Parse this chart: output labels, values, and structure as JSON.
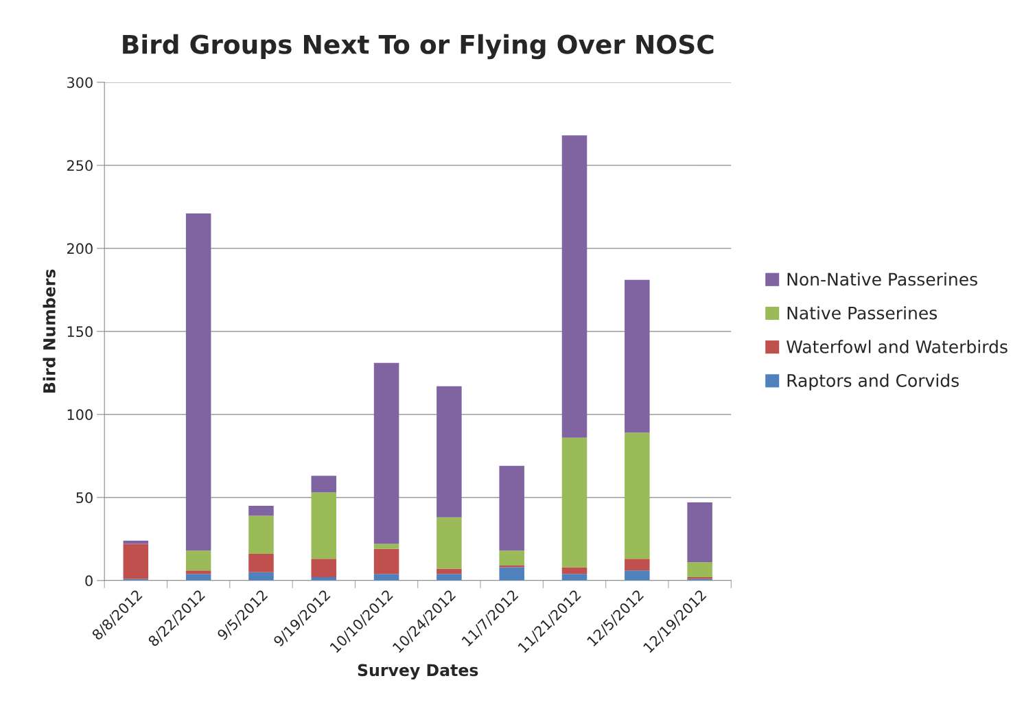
{
  "chart_data": {
    "type": "bar",
    "stacked": true,
    "title": "Bird Groups Next To or Flying Over NOSC",
    "xlabel": "Survey Dates",
    "ylabel": "Bird Numbers",
    "categories": [
      "8/8/2012",
      "8/22/2012",
      "9/5/2012",
      "9/19/2012",
      "10/10/2012",
      "10/24/2012",
      "11/7/2012",
      "11/21/2012",
      "12/5/2012",
      "12/19/2012"
    ],
    "series": [
      {
        "name": "Raptors and Corvids",
        "color": "#4f81bd",
        "values": [
          1,
          4,
          5,
          2,
          4,
          4,
          8,
          4,
          6,
          1
        ]
      },
      {
        "name": "Waterfowl and Waterbirds",
        "color": "#c0504d",
        "values": [
          21,
          2,
          11,
          11,
          15,
          3,
          1,
          4,
          7,
          1
        ]
      },
      {
        "name": "Native Passerines",
        "color": "#9bbb59",
        "values": [
          0,
          12,
          23,
          40,
          3,
          31,
          9,
          78,
          76,
          9
        ]
      },
      {
        "name": "Non-Native Passerines",
        "color": "#8064a2",
        "values": [
          2,
          203,
          6,
          10,
          109,
          79,
          51,
          182,
          92,
          36
        ]
      }
    ],
    "ylim": [
      0,
      300
    ],
    "yticks": [
      0,
      50,
      100,
      150,
      200,
      250,
      300
    ],
    "grid": "y",
    "legend": "right"
  }
}
